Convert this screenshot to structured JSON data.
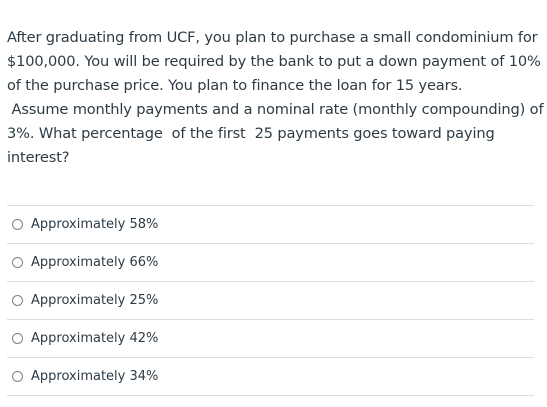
{
  "question": {
    "lines": [
      "After graduating from UCF, you plan to purchase a small condominium for",
      "$100,000.  You will be required by the bank to put a down payment of 10%",
      "of the purchase price. You plan to finance the loan for 15 years.",
      " Assume monthly payments and a nominal rate (monthly compounding) of",
      "3%. What percentage  of the first  25 payments goes toward paying",
      "interest?"
    ]
  },
  "answers": [
    {
      "label": "Approximately 58%"
    },
    {
      "label": "Approximately 66%"
    },
    {
      "label": "Approximately 25%"
    },
    {
      "label": "Approximately 42%"
    },
    {
      "label": "Approximately 34%"
    }
  ]
}
